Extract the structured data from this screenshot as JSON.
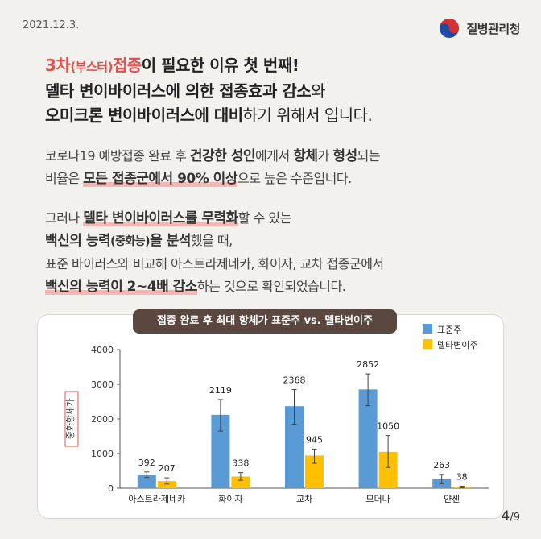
{
  "date": "2021.12.3.",
  "logo_name": "질병관리청",
  "headline": {
    "l1_red1": "3차",
    "l1_red_small": "(부스터)",
    "l1_red2": "접종",
    "l1_rest": "이 필요한 이유 첫 번째!",
    "l2_bold": "델타 변이바이러스에 의한 접종효과 감소",
    "l2_rest": "와",
    "l3_bold": "오미크론 변이바이러스에 대비",
    "l3_rest": "하기 위해서 입니다."
  },
  "para1": {
    "a": "코로나19 예방접종 완료 후 ",
    "b1": "건강한 성인",
    "c": "에게서 ",
    "b2": "항체",
    "d": "가 ",
    "b3": "형성",
    "e": "되는",
    "f": "비율은 ",
    "b4": "모든 접종군에서 90% 이상",
    "g": "으로 높은 수준입니다."
  },
  "para2": {
    "a": "그러나 ",
    "b1": "델타 변이바이러스를 무력화",
    "c": "할 수 있는",
    "b2": "백신의 능력",
    "b2s": "(중화능)",
    "b3": "을 분석",
    "d": "했을 때,",
    "e": "표준 바이러스와 비교해 아스트라제네카, 화이자, 교차 접종군에서",
    "b4": "백신의 능력이 2~4배 감소",
    "f": "하는 것으로 확인되었습니다."
  },
  "page": {
    "current": "4",
    "total": "/9"
  },
  "colors": {
    "standard": "#5b9bd5",
    "delta": "#ffc000",
    "accent": "#e0524f"
  },
  "chart_data": {
    "type": "bar",
    "title": "접종 완료 후 최대 항체가 표준주 vs. 델타변이주",
    "ylabel": "중화항체가",
    "ylim": [
      0,
      4000
    ],
    "yticks": [
      "0",
      "1000",
      "2000",
      "3000",
      "4000"
    ],
    "legend_position": "top-right",
    "categories": [
      "아스트라제네카",
      "화이자",
      "교차",
      "모더나",
      "얀센"
    ],
    "series": [
      {
        "name": "표준주",
        "values": [
          392,
          2119,
          2368,
          2852,
          263
        ],
        "err_low": [
          310,
          1650,
          1850,
          2380,
          130
        ],
        "err_high": [
          470,
          2560,
          2850,
          3300,
          400
        ]
      },
      {
        "name": "델타변이주",
        "values": [
          207,
          338,
          945,
          1050,
          38
        ],
        "err_low": [
          120,
          230,
          720,
          600,
          15
        ],
        "err_high": [
          300,
          450,
          1130,
          1520,
          60
        ]
      }
    ],
    "data_labels": [
      [
        "392",
        "2119",
        "2368",
        "2852",
        "263"
      ],
      [
        "207",
        "338",
        "945",
        "1050",
        "38"
      ]
    ]
  }
}
